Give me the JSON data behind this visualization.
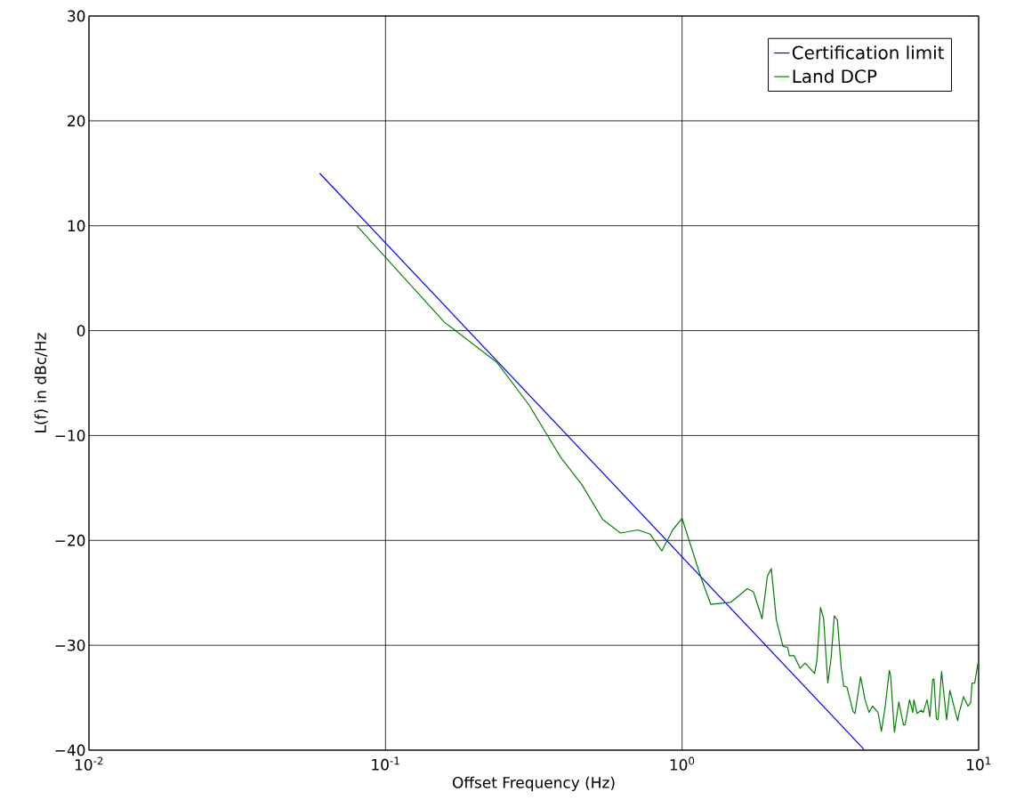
{
  "chart_data": {
    "type": "line",
    "xlabel": "Offset Frequency (Hz)",
    "ylabel": "L(f) in dBc/Hz",
    "log": "x",
    "grid": true,
    "legend": "top right",
    "line_style": "solid",
    "marker": "none",
    "xlim": [
      0.01,
      10
    ],
    "ylim": [
      -40,
      30
    ],
    "xticks": [
      {
        "value": 0.01,
        "label": "10$^{-2}$"
      },
      {
        "value": 0.1,
        "label": "10$^{-1}$"
      },
      {
        "value": 1,
        "label": "10$^{0}$"
      },
      {
        "value": 10,
        "label": "10$^{1}$"
      }
    ],
    "yticks": [
      {
        "value": -40,
        "label": "−40"
      },
      {
        "value": -30,
        "label": "−30"
      },
      {
        "value": -20,
        "label": "−20"
      },
      {
        "value": -10,
        "label": "−10"
      },
      0,
      10,
      20,
      30
    ],
    "series": [
      {
        "name": "Certification limit",
        "color": "#0000ff",
        "x": [
          0.06,
          4.1
        ],
        "values": [
          15,
          -39.9
        ]
      },
      {
        "name": "Land DCP",
        "color": "#008000",
        "x": [
          0.08,
          0.158,
          0.237,
          0.305,
          0.39,
          0.46,
          0.54,
          0.62,
          0.71,
          0.78,
          0.855,
          0.93,
          1.0,
          1.16,
          1.25,
          1.46,
          1.49,
          1.66,
          1.74,
          1.84,
          1.86,
          1.94,
          2.0,
          2.08,
          2.19,
          2.27,
          2.3,
          2.39,
          2.5,
          2.6,
          2.8,
          2.85,
          2.93,
          3.0,
          3.1,
          3.18,
          3.26,
          3.34,
          3.44,
          3.51,
          3.6,
          3.77,
          3.83,
          4.0,
          4.14,
          4.27,
          4.39,
          4.58,
          4.7,
          4.84,
          5.0,
          5.05,
          5.2,
          5.38,
          5.58,
          5.65,
          5.85,
          6.0,
          6.05,
          6.2,
          6.4,
          6.5,
          6.7,
          6.85,
          7.0,
          7.07,
          7.2,
          7.3,
          7.5,
          7.8,
          8.0,
          8.2,
          8.5,
          8.6,
          8.9,
          9.2,
          9.4,
          9.5,
          9.7,
          9.95
        ],
        "values": [
          10,
          0.8,
          -3,
          -7.1,
          -12.1,
          -14.7,
          -18,
          -19.3,
          -19,
          -19.4,
          -21,
          -19,
          -17.9,
          -23.6,
          -26.1,
          -25.9,
          -25.7,
          -24.6,
          -24.9,
          -27,
          -27.5,
          -23.4,
          -22.7,
          -27.6,
          -30.1,
          -30.2,
          -31,
          -31,
          -32.2,
          -31.7,
          -32.7,
          -31.4,
          -26.4,
          -27.4,
          -33.6,
          -31.3,
          -27.2,
          -27.6,
          -32.1,
          -33.9,
          -34,
          -36.3,
          -36.5,
          -33,
          -35.2,
          -36.4,
          -35.8,
          -36.4,
          -38.2,
          -35.9,
          -32.4,
          -32.9,
          -38.3,
          -35.4,
          -37.6,
          -37.6,
          -35.2,
          -36.4,
          -35.2,
          -36.5,
          -36.2,
          -36.4,
          -35.2,
          -36.8,
          -33.3,
          -33.2,
          -37,
          -37.1,
          -32.5,
          -37.1,
          -34.3,
          -35.5,
          -37.2,
          -36.4,
          -34.9,
          -35.8,
          -35.5,
          -33.6,
          -33.6,
          -31.7
        ]
      }
    ]
  }
}
